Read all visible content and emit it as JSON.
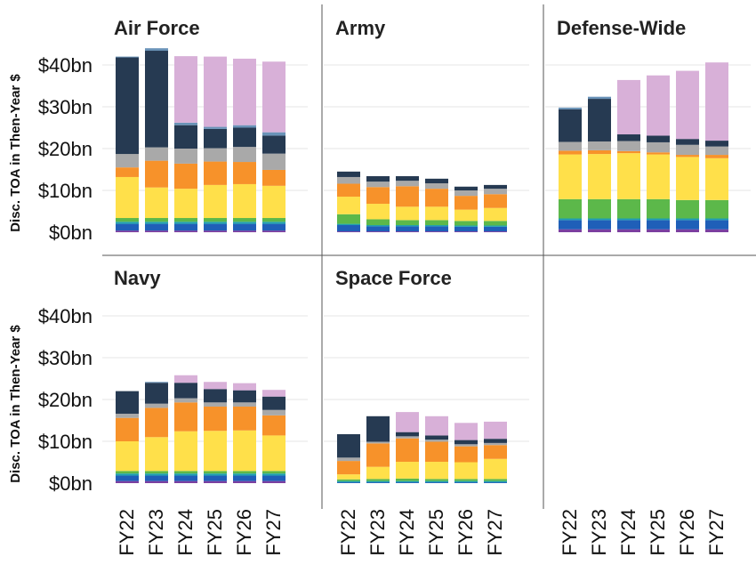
{
  "chart_data": {
    "type": "bar",
    "stacked": true,
    "layout": "facet-grid",
    "ylabel": "Disc. TOA in Then-Year $",
    "ylim": [
      0,
      45
    ],
    "yticks": [
      0,
      10,
      20,
      30,
      40
    ],
    "ytick_labels": [
      "$0bn",
      "$10bn",
      "$20bn",
      "$30bn",
      "$40bn"
    ],
    "categories": [
      "FY22",
      "FY23",
      "FY24",
      "FY25",
      "FY26",
      "FY27"
    ],
    "grid": true,
    "legend": "none",
    "segment_colors": [
      "#7b3fa0",
      "#1f5fb8",
      "#1f9fb0",
      "#5cb84a",
      "#ffe04a",
      "#f7922a",
      "#a9a9a9",
      "#263a52",
      "#6a93b8",
      "#d8b0d8"
    ],
    "panels": [
      {
        "title": "Air Force",
        "stacks": [
          [
            0.4,
            1.6,
            0.5,
            0.9,
            9.8,
            2.3,
            3.2,
            23.1,
            0.2,
            0.0
          ],
          [
            0.4,
            1.6,
            0.5,
            0.9,
            7.3,
            6.4,
            3.2,
            23.1,
            0.6,
            0.0
          ],
          [
            0.4,
            1.6,
            0.5,
            0.9,
            7.0,
            6.0,
            3.6,
            5.6,
            0.6,
            15.9
          ],
          [
            0.4,
            1.6,
            0.5,
            0.9,
            7.9,
            5.6,
            3.2,
            4.6,
            0.5,
            16.8
          ],
          [
            0.4,
            1.6,
            0.5,
            0.9,
            8.1,
            5.3,
            3.6,
            4.6,
            0.6,
            15.9
          ],
          [
            0.4,
            1.6,
            0.5,
            0.9,
            7.7,
            3.8,
            3.9,
            4.3,
            0.8,
            16.9
          ]
        ]
      },
      {
        "title": "Army",
        "stacks": [
          [
            0.2,
            1.5,
            0.3,
            2.3,
            4.2,
            3.1,
            1.6,
            1.3,
            0.0,
            0.0
          ],
          [
            0.2,
            1.2,
            0.3,
            1.4,
            3.7,
            4.0,
            1.3,
            1.3,
            0.0,
            0.0
          ],
          [
            0.2,
            1.2,
            0.3,
            1.2,
            3.2,
            4.9,
            1.3,
            1.1,
            0.0,
            0.0
          ],
          [
            0.2,
            1.2,
            0.3,
            1.2,
            3.2,
            4.3,
            1.3,
            1.1,
            0.0,
            0.0
          ],
          [
            0.2,
            1.1,
            0.3,
            1.1,
            2.7,
            3.3,
            1.3,
            0.9,
            0.0,
            0.0
          ],
          [
            0.2,
            1.1,
            0.3,
            1.1,
            3.1,
            3.3,
            1.3,
            0.9,
            0.0,
            0.0
          ]
        ]
      },
      {
        "title": "Defense-Wide",
        "stacks": [
          [
            0.7,
            2.2,
            0.4,
            4.6,
            10.7,
            0.9,
            2.1,
            7.8,
            0.4,
            0.0
          ],
          [
            0.7,
            2.2,
            0.4,
            4.6,
            10.8,
            0.9,
            2.1,
            10.2,
            0.5,
            0.0
          ],
          [
            0.7,
            2.2,
            0.4,
            4.6,
            11.0,
            0.5,
            2.4,
            1.6,
            0.0,
            13.0
          ],
          [
            0.7,
            2.2,
            0.4,
            4.6,
            10.7,
            0.5,
            2.4,
            1.6,
            0.0,
            14.4
          ],
          [
            0.7,
            2.2,
            0.4,
            4.4,
            10.3,
            0.5,
            2.4,
            1.4,
            0.0,
            16.3
          ],
          [
            0.7,
            2.2,
            0.4,
            4.4,
            10.0,
            0.8,
            2.0,
            1.4,
            0.0,
            18.7
          ]
        ]
      },
      {
        "title": "Navy",
        "stacks": [
          [
            0.5,
            1.3,
            0.5,
            0.6,
            7.1,
            5.6,
            1.0,
            5.4,
            0.0,
            0.0
          ],
          [
            0.5,
            1.3,
            0.5,
            0.6,
            8.1,
            7.0,
            1.0,
            5.0,
            0.2,
            0.0
          ],
          [
            0.5,
            1.3,
            0.5,
            0.6,
            9.5,
            6.9,
            1.0,
            3.7,
            0.0,
            1.8
          ],
          [
            0.5,
            1.3,
            0.5,
            0.6,
            9.6,
            5.8,
            1.0,
            3.2,
            0.0,
            1.7
          ],
          [
            0.5,
            1.3,
            0.5,
            0.6,
            9.7,
            5.7,
            1.0,
            2.9,
            0.0,
            1.7
          ],
          [
            0.5,
            1.3,
            0.5,
            0.6,
            8.5,
            4.8,
            1.3,
            3.2,
            0.0,
            1.6
          ]
        ]
      },
      {
        "title": "Space Force",
        "stacks": [
          [
            0.0,
            0.2,
            0.3,
            0.4,
            1.2,
            3.2,
            0.8,
            5.6,
            0.0,
            0.0
          ],
          [
            0.0,
            0.2,
            0.3,
            0.5,
            2.9,
            5.6,
            0.4,
            6.1,
            0.0,
            0.0
          ],
          [
            0.0,
            0.2,
            0.3,
            0.6,
            4.0,
            5.6,
            0.5,
            1.0,
            0.0,
            4.8
          ],
          [
            0.0,
            0.2,
            0.3,
            0.5,
            4.1,
            4.8,
            0.5,
            1.0,
            0.0,
            4.6
          ],
          [
            0.0,
            0.2,
            0.3,
            0.5,
            4.0,
            3.8,
            0.5,
            1.0,
            0.0,
            4.1
          ],
          [
            0.0,
            0.2,
            0.3,
            0.5,
            4.8,
            3.3,
            0.5,
            1.0,
            0.0,
            4.1
          ]
        ]
      }
    ]
  }
}
